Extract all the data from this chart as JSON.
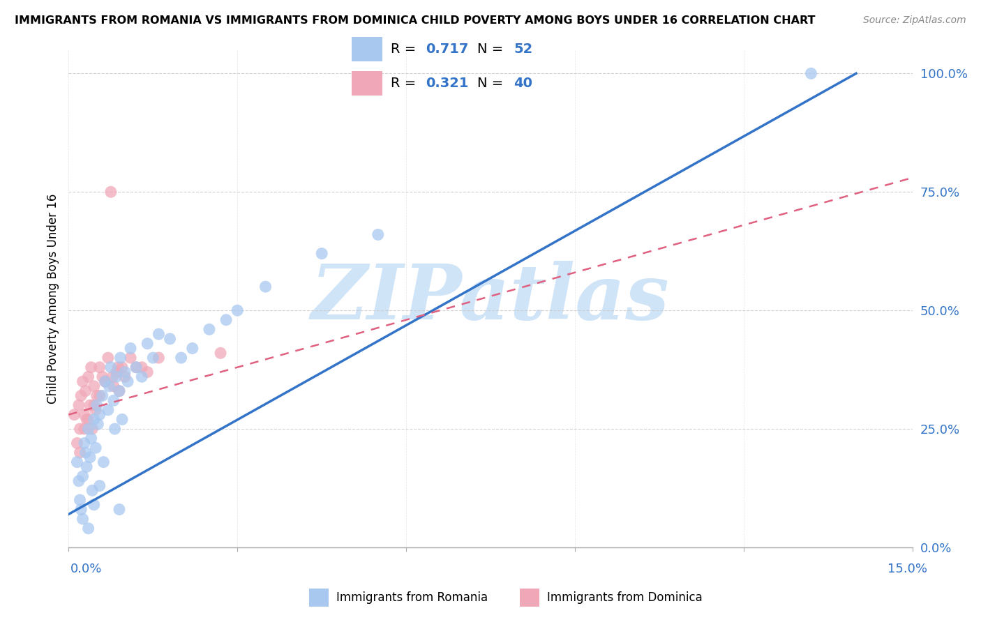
{
  "title": "IMMIGRANTS FROM ROMANIA VS IMMIGRANTS FROM DOMINICA CHILD POVERTY AMONG BOYS UNDER 16 CORRELATION CHART",
  "source": "Source: ZipAtlas.com",
  "ylabel": "Child Poverty Among Boys Under 16",
  "yticks_labels": [
    "0.0%",
    "25.0%",
    "50.0%",
    "75.0%",
    "100.0%"
  ],
  "ytick_vals": [
    0,
    25,
    50,
    75,
    100
  ],
  "xlim": [
    0,
    15
  ],
  "ylim": [
    0,
    105
  ],
  "romania_color": "#a8c8f0",
  "dominica_color": "#f0a8b8",
  "romania_line_color": "#3374c8",
  "dominica_line_color": "#e06080",
  "watermark": "ZIPatlas",
  "watermark_color": "#d0e4f8",
  "legend_label_romania": "Immigrants from Romania",
  "legend_label_dominica": "Immigrants from Dominica",
  "romania_R": "0.717",
  "romania_N": "52",
  "dominica_R": "0.321",
  "dominica_N": "40",
  "romania_line_x0": 0,
  "romania_line_y0": 7,
  "romania_line_x1": 14,
  "romania_line_y1": 100,
  "dominica_line_x0": 0,
  "dominica_line_y0": 28,
  "dominica_line_x1": 15,
  "dominica_line_y1": 78,
  "romania_scatter_x": [
    0.15,
    0.18,
    0.2,
    0.22,
    0.25,
    0.28,
    0.3,
    0.32,
    0.35,
    0.38,
    0.4,
    0.42,
    0.45,
    0.48,
    0.5,
    0.52,
    0.55,
    0.6,
    0.62,
    0.65,
    0.7,
    0.72,
    0.75,
    0.8,
    0.82,
    0.85,
    0.9,
    0.92,
    0.95,
    1.0,
    1.05,
    1.1,
    1.2,
    1.3,
    1.4,
    1.5,
    1.6,
    1.8,
    2.0,
    2.2,
    2.5,
    2.8,
    3.0,
    3.5,
    4.5,
    5.5,
    0.25,
    0.35,
    0.45,
    0.55,
    0.9,
    13.2
  ],
  "romania_scatter_y": [
    18,
    14,
    10,
    8,
    15,
    22,
    20,
    17,
    25,
    19,
    23,
    12,
    27,
    21,
    30,
    26,
    28,
    32,
    18,
    35,
    29,
    34,
    38,
    31,
    25,
    36,
    33,
    40,
    27,
    37,
    35,
    42,
    38,
    36,
    43,
    40,
    45,
    44,
    40,
    42,
    46,
    48,
    50,
    55,
    62,
    66,
    6,
    4,
    9,
    13,
    8,
    100
  ],
  "dominica_scatter_x": [
    0.1,
    0.15,
    0.18,
    0.2,
    0.22,
    0.25,
    0.28,
    0.3,
    0.32,
    0.35,
    0.38,
    0.4,
    0.42,
    0.45,
    0.48,
    0.5,
    0.55,
    0.6,
    0.65,
    0.7,
    0.75,
    0.8,
    0.85,
    0.9,
    0.95,
    1.0,
    1.1,
    1.2,
    1.4,
    1.6,
    0.2,
    0.28,
    0.35,
    0.45,
    0.55,
    0.65,
    0.78,
    0.88,
    1.3,
    2.7
  ],
  "dominica_scatter_y": [
    28,
    22,
    30,
    25,
    32,
    35,
    28,
    33,
    27,
    36,
    30,
    38,
    25,
    34,
    29,
    32,
    38,
    36,
    35,
    40,
    75,
    34,
    37,
    33,
    38,
    36,
    40,
    38,
    37,
    40,
    20,
    25,
    27,
    30,
    32,
    35,
    36,
    38,
    38,
    41
  ]
}
